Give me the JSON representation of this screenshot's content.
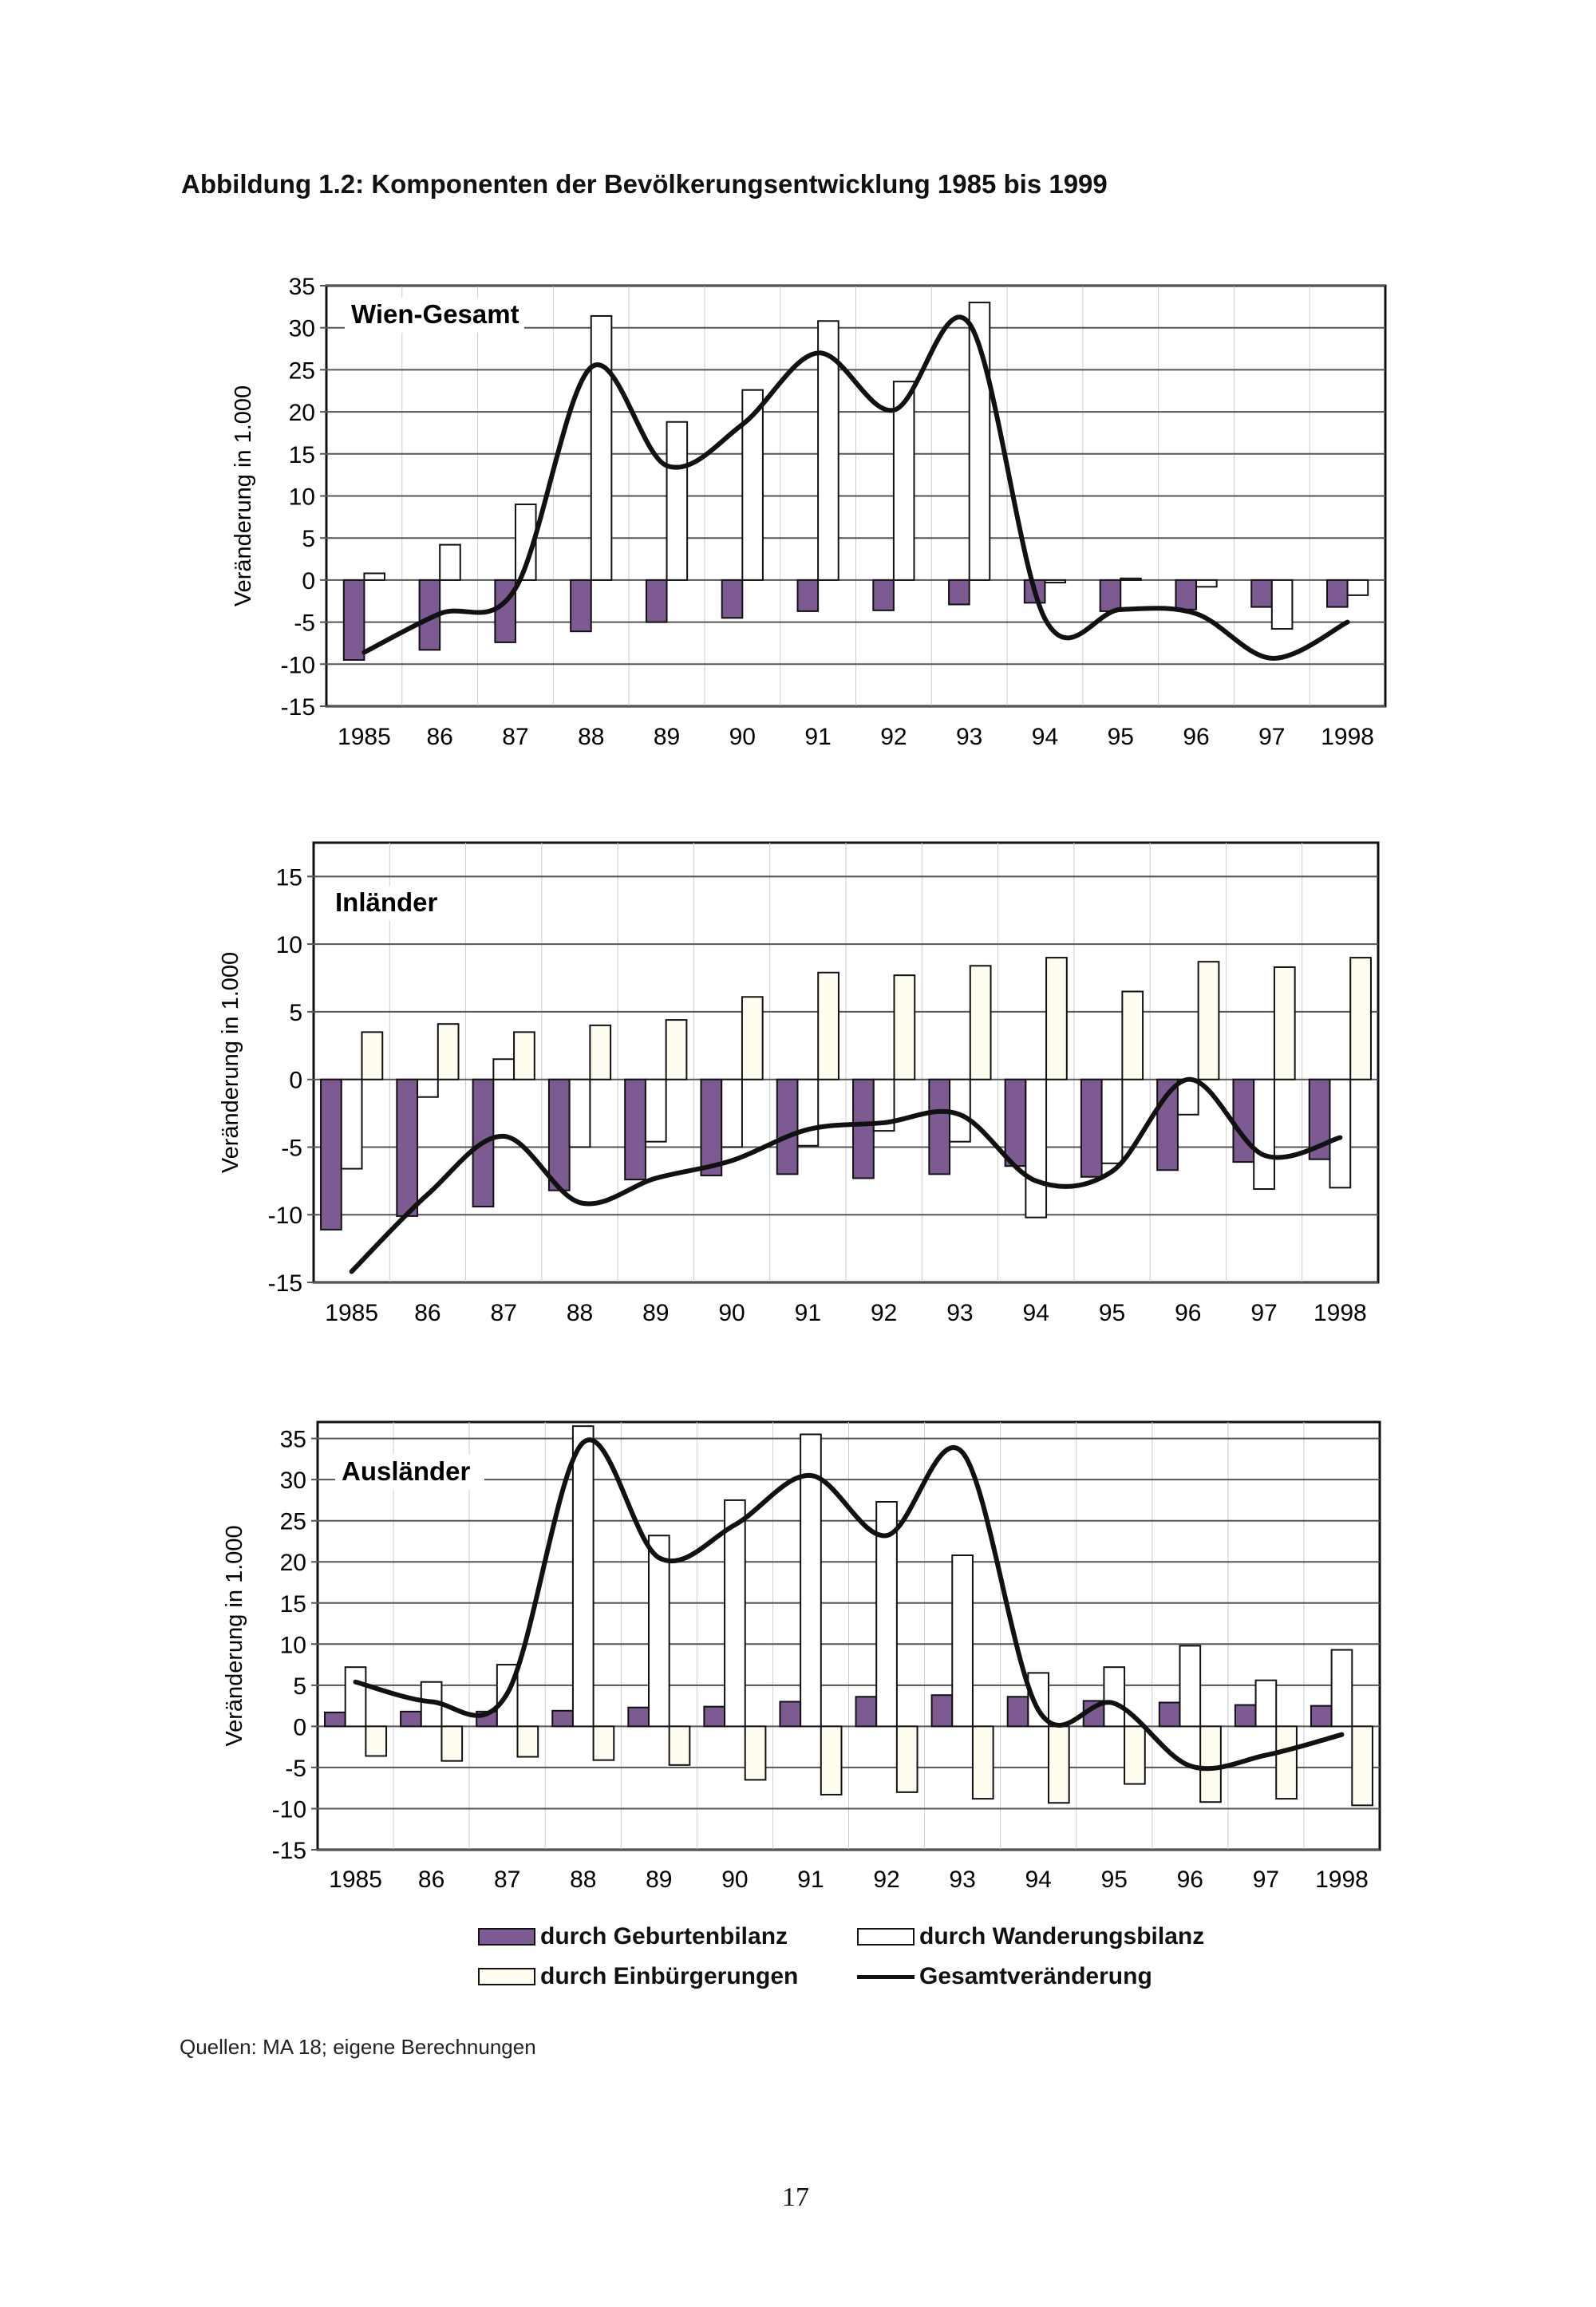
{
  "title": "Abbildung 1.2: Komponenten der Bevölkerungsentwicklung 1985 bis 1999",
  "source": "Quellen: MA 18; eigene Berechnungen",
  "page_number": "17",
  "colors": {
    "geburten": "#7d5b92",
    "wanderung": "#ffffff",
    "einbuergerung": "#fffdf0",
    "line": "#111111",
    "grid": "#555555"
  },
  "legend": {
    "geburten": "durch Geburtenbilanz",
    "wanderung": "durch Wanderungsbilanz",
    "einbuergerung": "durch Einbürgerungen",
    "gesamt": "Gesamtveränderung"
  },
  "chart_data": [
    {
      "type": "bar",
      "title": "Wien-Gesamt",
      "ylabel": "Veränderung in 1.000",
      "categories": [
        "1985",
        "86",
        "87",
        "88",
        "89",
        "90",
        "91",
        "92",
        "93",
        "94",
        "95",
        "96",
        "97",
        "1998"
      ],
      "yticks": [
        "35",
        "30",
        "25",
        "20",
        "15",
        "10",
        "5",
        "0",
        "-5",
        "-10",
        "-15"
      ],
      "ylim": [
        -15,
        35
      ],
      "grid": true,
      "series": [
        {
          "name": "durch Geburtenbilanz",
          "kind": "bar",
          "values": [
            -9.5,
            -8.3,
            -7.4,
            -6.1,
            -5.0,
            -4.5,
            -3.7,
            -3.6,
            -2.9,
            -2.7,
            -3.7,
            -3.5,
            -3.2,
            -3.2
          ]
        },
        {
          "name": "durch Wanderungsbilanz",
          "kind": "bar",
          "values": [
            0.8,
            4.2,
            9.0,
            31.4,
            18.8,
            22.6,
            30.8,
            23.6,
            33.0,
            -0.3,
            0.2,
            -0.8,
            -5.8,
            -1.8
          ]
        },
        {
          "name": "Gesamtveränderung",
          "kind": "line",
          "values": [
            -8.6,
            -4.0,
            -1.0,
            25.3,
            13.6,
            18.5,
            27.0,
            20.2,
            30.5,
            -4.6,
            -3.5,
            -4.0,
            -9.3,
            -5.0
          ]
        }
      ]
    },
    {
      "type": "bar",
      "title": "Inländer",
      "ylabel": "Veränderung in 1.000",
      "categories": [
        "1985",
        "86",
        "87",
        "88",
        "89",
        "90",
        "91",
        "92",
        "93",
        "94",
        "95",
        "96",
        "97",
        "1998"
      ],
      "yticks": [
        "15",
        "10",
        "5",
        "0",
        "-5",
        "-10",
        "-15"
      ],
      "ylim": [
        -15,
        17.5
      ],
      "grid": true,
      "series": [
        {
          "name": "durch Geburtenbilanz",
          "kind": "bar",
          "values": [
            -11.1,
            -10.1,
            -9.4,
            -8.2,
            -7.4,
            -7.1,
            -7.0,
            -7.3,
            -7.0,
            -6.4,
            -7.2,
            -6.7,
            -6.1,
            -5.9
          ]
        },
        {
          "name": "durch Wanderungsbilanz",
          "kind": "bar",
          "values": [
            -6.6,
            -1.3,
            1.5,
            -5.0,
            -4.6,
            -5.0,
            -4.9,
            -3.8,
            -4.6,
            -10.2,
            -6.2,
            -2.6,
            -8.1,
            -8.0
          ]
        },
        {
          "name": "durch Einbürgerungen",
          "kind": "bar",
          "values": [
            3.5,
            4.1,
            3.5,
            4.0,
            4.4,
            6.1,
            7.9,
            7.7,
            8.4,
            9.0,
            6.5,
            8.7,
            8.3,
            9.0
          ]
        },
        {
          "name": "Gesamtveränderung",
          "kind": "line",
          "values": [
            -14.2,
            -8.5,
            -4.2,
            -9.1,
            -7.3,
            -6.0,
            -3.7,
            -3.2,
            -2.6,
            -7.5,
            -6.8,
            0.0,
            -5.6,
            -4.3
          ]
        }
      ]
    },
    {
      "type": "bar",
      "title": "Ausländer",
      "ylabel": "Veränderung in 1.000",
      "categories": [
        "1985",
        "86",
        "87",
        "88",
        "89",
        "90",
        "91",
        "92",
        "93",
        "94",
        "95",
        "96",
        "97",
        "1998"
      ],
      "yticks": [
        "35",
        "30",
        "25",
        "20",
        "15",
        "10",
        "5",
        "0",
        "-5",
        "-10",
        "-15"
      ],
      "ylim": [
        -15,
        37
      ],
      "grid": true,
      "series": [
        {
          "name": "durch Geburtenbilanz",
          "kind": "bar",
          "values": [
            1.7,
            1.8,
            1.8,
            1.9,
            2.3,
            2.4,
            3.0,
            3.6,
            3.8,
            3.6,
            3.1,
            2.9,
            2.6,
            2.5
          ]
        },
        {
          "name": "durch Wanderungsbilanz",
          "kind": "bar",
          "values": [
            7.2,
            5.4,
            7.5,
            36.5,
            23.2,
            27.5,
            35.5,
            27.3,
            20.8,
            6.5,
            7.2,
            9.8,
            5.6,
            9.3
          ]
        },
        {
          "name": "durch Einbürgerungen",
          "kind": "bar",
          "values": [
            -3.6,
            -4.2,
            -3.7,
            -4.1,
            -4.7,
            -6.5,
            -8.3,
            -8.0,
            -8.8,
            -9.3,
            -7.0,
            -9.2,
            -8.8,
            -9.6
          ]
        },
        {
          "name": "Gesamtveränderung",
          "kind": "line",
          "values": [
            5.4,
            3.0,
            4.0,
            34.5,
            20.5,
            24.5,
            30.5,
            23.2,
            33.3,
            2.0,
            2.8,
            -4.8,
            -3.5,
            -1.0
          ]
        }
      ]
    }
  ]
}
